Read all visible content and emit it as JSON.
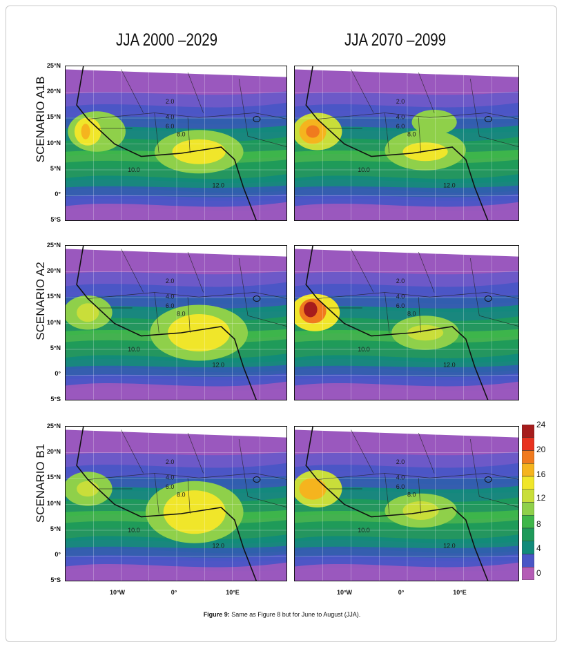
{
  "columns": [
    "JJA 2000 –2029",
    "JJA 2070 –2099"
  ],
  "rows": [
    "SCENARIO  A1B",
    "SCENARIO  A2",
    "SCENARIO  B1"
  ],
  "lat_labels": [
    "25°N",
    "20°N",
    "15°N",
    "10°N",
    "5°N",
    "0°",
    "5°S"
  ],
  "lon_labels": [
    "10°W",
    "0°",
    "10°E"
  ],
  "colorbar": {
    "labels": [
      "24",
      "20",
      "16",
      "12",
      "8",
      "4",
      "0"
    ],
    "colors": [
      "#a61c1c",
      "#e8321f",
      "#f07a1e",
      "#f5b41e",
      "#f0e62a",
      "#c9de3a",
      "#8fd04a",
      "#3fb64a",
      "#1e9a5a",
      "#128a7a",
      "#2f5fae",
      "#4a56c6",
      "#6a5ac8",
      "#9a58be",
      "#b55cb6"
    ]
  },
  "contour_labels": [
    "2.0",
    "4.0",
    "6.0",
    "8.0",
    "10.0",
    "12.0"
  ],
  "caption": {
    "label": "Figure 9:",
    "text": " Same as Figure 8 but for June to August (JJA)."
  }
}
